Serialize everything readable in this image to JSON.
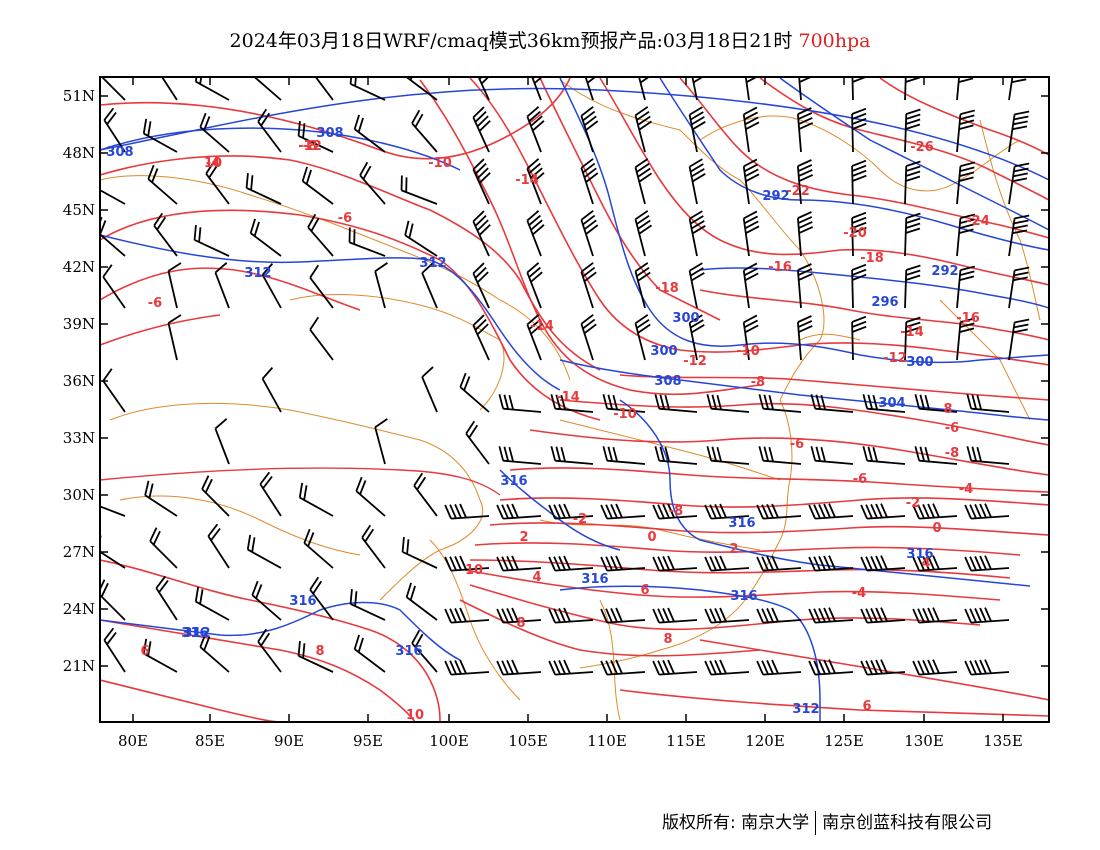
{
  "title": {
    "text": "2024年03月18日WRF/cmaq模式36km预报产品:03月18日21时",
    "level": "700hpa"
  },
  "colors": {
    "temperature_contour": "#e8393d",
    "height_contour": "#2546d8",
    "boundary": "#e08a2a",
    "wind_barb": "#000000",
    "level_text": "#e02020"
  },
  "axes": {
    "lat_labels": [
      "51N",
      "48N",
      "45N",
      "42N",
      "39N",
      "36N",
      "33N",
      "30N",
      "27N",
      "24N",
      "21N"
    ],
    "lon_labels": [
      "80E",
      "85E",
      "90E",
      "95E",
      "100E",
      "105E",
      "110E",
      "115E",
      "120E",
      "125E",
      "130E",
      "135E"
    ]
  },
  "contour_labels": {
    "temperature": [
      "-4",
      "-8",
      "-10",
      "-14",
      "-6",
      "-6",
      "-14",
      "-22",
      "-26",
      "-24",
      "-20",
      "-18",
      "-16",
      "-18",
      "-16",
      "-14",
      "-12",
      "-10",
      "-12",
      "-14",
      "-8",
      "-6",
      "-10",
      "-8",
      "-6",
      "-4",
      "-8",
      "-6",
      "-2",
      "-2",
      "0",
      "0",
      "2",
      "2",
      "4",
      "4",
      "-4",
      "6",
      "8",
      "10",
      "10",
      "6",
      "8",
      "6",
      "8",
      "8",
      "10",
      "-12"
    ],
    "height": [
      "308",
      "308",
      "312",
      "312",
      "292",
      "292",
      "296",
      "300",
      "300",
      "304",
      "300",
      "308",
      "316",
      "316",
      "316",
      "312",
      "316",
      "316",
      "316",
      "316",
      "312",
      "316"
    ]
  },
  "copyright": {
    "left": "版权所有: 南京大学",
    "right": "南京创蓝科技有限公司"
  }
}
